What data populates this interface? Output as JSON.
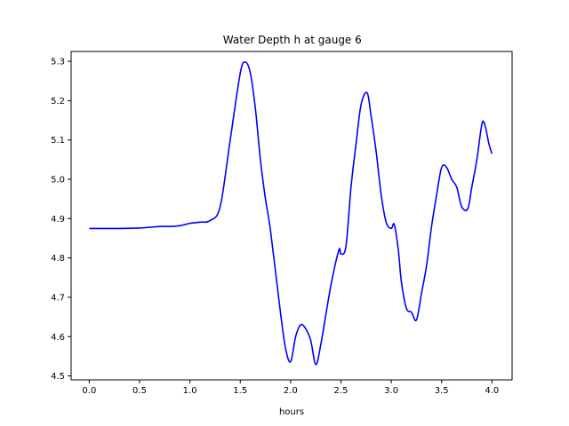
{
  "chart_data": {
    "type": "line",
    "title": "Water Depth h at gauge 6",
    "xlabel": "hours",
    "ylabel": "",
    "xlim": [
      -0.18,
      4.2
    ],
    "ylim": [
      4.49,
      5.325
    ],
    "x_ticks": [
      0.0,
      0.5,
      1.0,
      1.5,
      2.0,
      2.5,
      3.0,
      3.5,
      4.0
    ],
    "x_tick_labels": [
      "0.0",
      "0.5",
      "1.0",
      "1.5",
      "2.0",
      "2.5",
      "3.0",
      "3.5",
      "4.0"
    ],
    "y_ticks": [
      4.5,
      4.6,
      4.7,
      4.8,
      4.9,
      5.0,
      5.1,
      5.2,
      5.3
    ],
    "y_tick_labels": [
      "4.5",
      "4.6",
      "4.7",
      "4.8",
      "4.9",
      "5.0",
      "5.1",
      "5.2",
      "5.3"
    ],
    "grid": false,
    "line_color": "#0000ff",
    "series": [
      {
        "x": [
          0.0,
          0.3,
          0.5,
          0.6,
          0.7,
          0.8,
          0.9,
          1.0,
          1.1,
          1.2,
          1.3,
          1.4,
          1.5,
          1.55,
          1.6,
          1.65,
          1.7,
          1.75,
          1.8,
          1.9,
          1.95,
          2.0,
          2.05,
          2.1,
          2.15,
          2.2,
          2.25,
          2.3,
          2.4,
          2.48,
          2.5,
          2.55,
          2.6,
          2.65,
          2.7,
          2.76,
          2.8,
          2.85,
          2.9,
          2.95,
          3.0,
          3.03,
          3.07,
          3.1,
          3.15,
          3.2,
          3.25,
          3.3,
          3.35,
          3.4,
          3.45,
          3.5,
          3.55,
          3.6,
          3.65,
          3.7,
          3.76,
          3.8,
          3.85,
          3.9,
          3.93,
          3.97,
          4.0
        ],
        "y": [
          4.875,
          4.875,
          4.876,
          4.878,
          4.88,
          4.88,
          4.882,
          4.888,
          4.891,
          4.895,
          4.93,
          5.1,
          5.27,
          5.298,
          5.27,
          5.18,
          5.05,
          4.95,
          4.87,
          4.66,
          4.57,
          4.536,
          4.6,
          4.63,
          4.62,
          4.59,
          4.529,
          4.58,
          4.73,
          4.82,
          4.81,
          4.83,
          4.98,
          5.09,
          5.19,
          5.22,
          5.16,
          5.07,
          4.96,
          4.89,
          4.875,
          4.885,
          4.82,
          4.74,
          4.672,
          4.662,
          4.642,
          4.71,
          4.78,
          4.88,
          4.96,
          5.03,
          5.03,
          5.0,
          4.98,
          4.93,
          4.925,
          4.98,
          5.05,
          5.14,
          5.138,
          5.09,
          5.065
        ]
      }
    ]
  }
}
